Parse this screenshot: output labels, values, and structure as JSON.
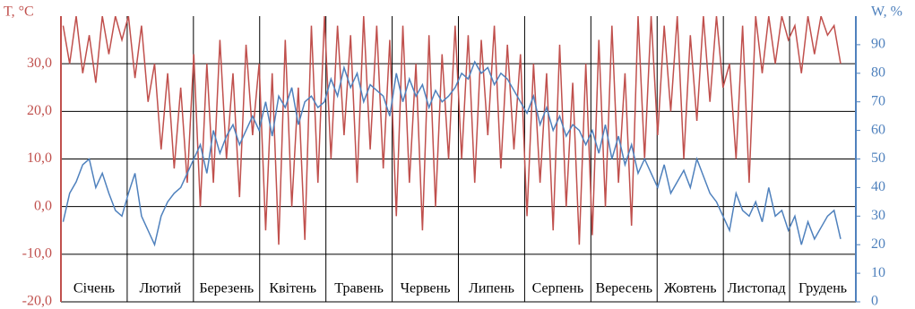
{
  "chart_data": {
    "type": "line",
    "ylabel": "T, °C",
    "y2label": "W, %",
    "categories": [
      "Січень",
      "Лютий",
      "Березень",
      "Квітень",
      "Травень",
      "Червень",
      "Липень",
      "Серпень",
      "Вересень",
      "Жовтень",
      "Листопад",
      "Грудень"
    ],
    "xlim": [
      0,
      365
    ],
    "x": [
      1,
      4,
      7,
      10,
      13,
      16,
      19,
      22,
      25,
      28,
      31,
      34,
      37,
      40,
      43,
      46,
      49,
      52,
      55,
      58,
      61,
      64,
      67,
      70,
      73,
      76,
      79,
      82,
      85,
      88,
      91,
      94,
      97,
      100,
      103,
      106,
      109,
      112,
      115,
      118,
      121,
      124,
      127,
      130,
      133,
      136,
      139,
      142,
      145,
      148,
      151,
      154,
      157,
      160,
      163,
      166,
      169,
      172,
      175,
      178,
      181,
      184,
      187,
      190,
      193,
      196,
      199,
      202,
      205,
      208,
      211,
      214,
      217,
      220,
      223,
      226,
      229,
      232,
      235,
      238,
      241,
      244,
      247,
      250,
      253,
      256,
      259,
      262,
      265,
      268,
      271,
      274,
      277,
      280,
      283,
      286,
      289,
      292,
      295,
      298,
      301,
      304,
      307,
      310,
      313,
      316,
      319,
      322,
      325,
      328,
      331,
      334,
      337,
      340,
      343,
      346,
      349,
      352,
      355,
      358
    ],
    "ylim": [
      -20,
      40
    ],
    "yticks": [
      {
        "value": -20,
        "label": "-20,0"
      },
      {
        "value": -10,
        "label": "-10,0"
      },
      {
        "value": 0,
        "label": "0,0"
      },
      {
        "value": 10,
        "label": "10,0"
      },
      {
        "value": 20,
        "label": "20,0"
      },
      {
        "value": 30,
        "label": "30,0"
      }
    ],
    "y2lim": [
      0,
      100
    ],
    "y2ticks": [
      0,
      10,
      20,
      30,
      40,
      50,
      60,
      70,
      80,
      90
    ],
    "grid": true,
    "series": [
      {
        "name": "T",
        "color": "#c0504d",
        "values": [
          38,
          30,
          40,
          28,
          36,
          26,
          40,
          32,
          40,
          35,
          40,
          27,
          38,
          22,
          30,
          12,
          28,
          8,
          25,
          5,
          32,
          0,
          30,
          5,
          35,
          10,
          28,
          2,
          34,
          15,
          30,
          -5,
          28,
          -8,
          35,
          0,
          25,
          -7,
          38,
          5,
          40,
          10,
          38,
          15,
          36,
          5,
          40,
          12,
          38,
          8,
          35,
          -2,
          38,
          5,
          30,
          -5,
          36,
          0,
          32,
          10,
          38,
          10,
          36,
          5,
          35,
          15,
          38,
          8,
          34,
          12,
          32,
          -2,
          30,
          5,
          28,
          -5,
          34,
          0,
          26,
          -8,
          30,
          -6,
          35,
          0,
          38,
          5,
          28,
          -4,
          40,
          10,
          40,
          15,
          38,
          20,
          40,
          10,
          36,
          18,
          40,
          22,
          40,
          25,
          30,
          10,
          38,
          5,
          40,
          28,
          40,
          30,
          40,
          35,
          38,
          28,
          40,
          32,
          40,
          36,
          38,
          30
        ]
      },
      {
        "name": "W",
        "color": "#4f81bd",
        "axis": "y2",
        "values": [
          28,
          38,
          42,
          48,
          50,
          40,
          45,
          38,
          32,
          30,
          38,
          45,
          30,
          25,
          20,
          30,
          35,
          38,
          40,
          45,
          50,
          55,
          45,
          60,
          52,
          58,
          62,
          55,
          60,
          65,
          60,
          70,
          58,
          72,
          68,
          75,
          62,
          70,
          72,
          68,
          70,
          78,
          72,
          82,
          75,
          80,
          70,
          76,
          74,
          72,
          65,
          80,
          70,
          78,
          72,
          76,
          68,
          74,
          70,
          72,
          75,
          80,
          78,
          84,
          80,
          82,
          76,
          80,
          78,
          74,
          70,
          66,
          72,
          62,
          68,
          60,
          65,
          58,
          62,
          60,
          55,
          60,
          52,
          62,
          50,
          58,
          48,
          55,
          45,
          50,
          45,
          40,
          48,
          38,
          42,
          46,
          40,
          50,
          44,
          38,
          35,
          30,
          25,
          38,
          32,
          30,
          35,
          28,
          40,
          30,
          32,
          25,
          30,
          20,
          28,
          22,
          26,
          30,
          32,
          22
        ]
      }
    ]
  }
}
